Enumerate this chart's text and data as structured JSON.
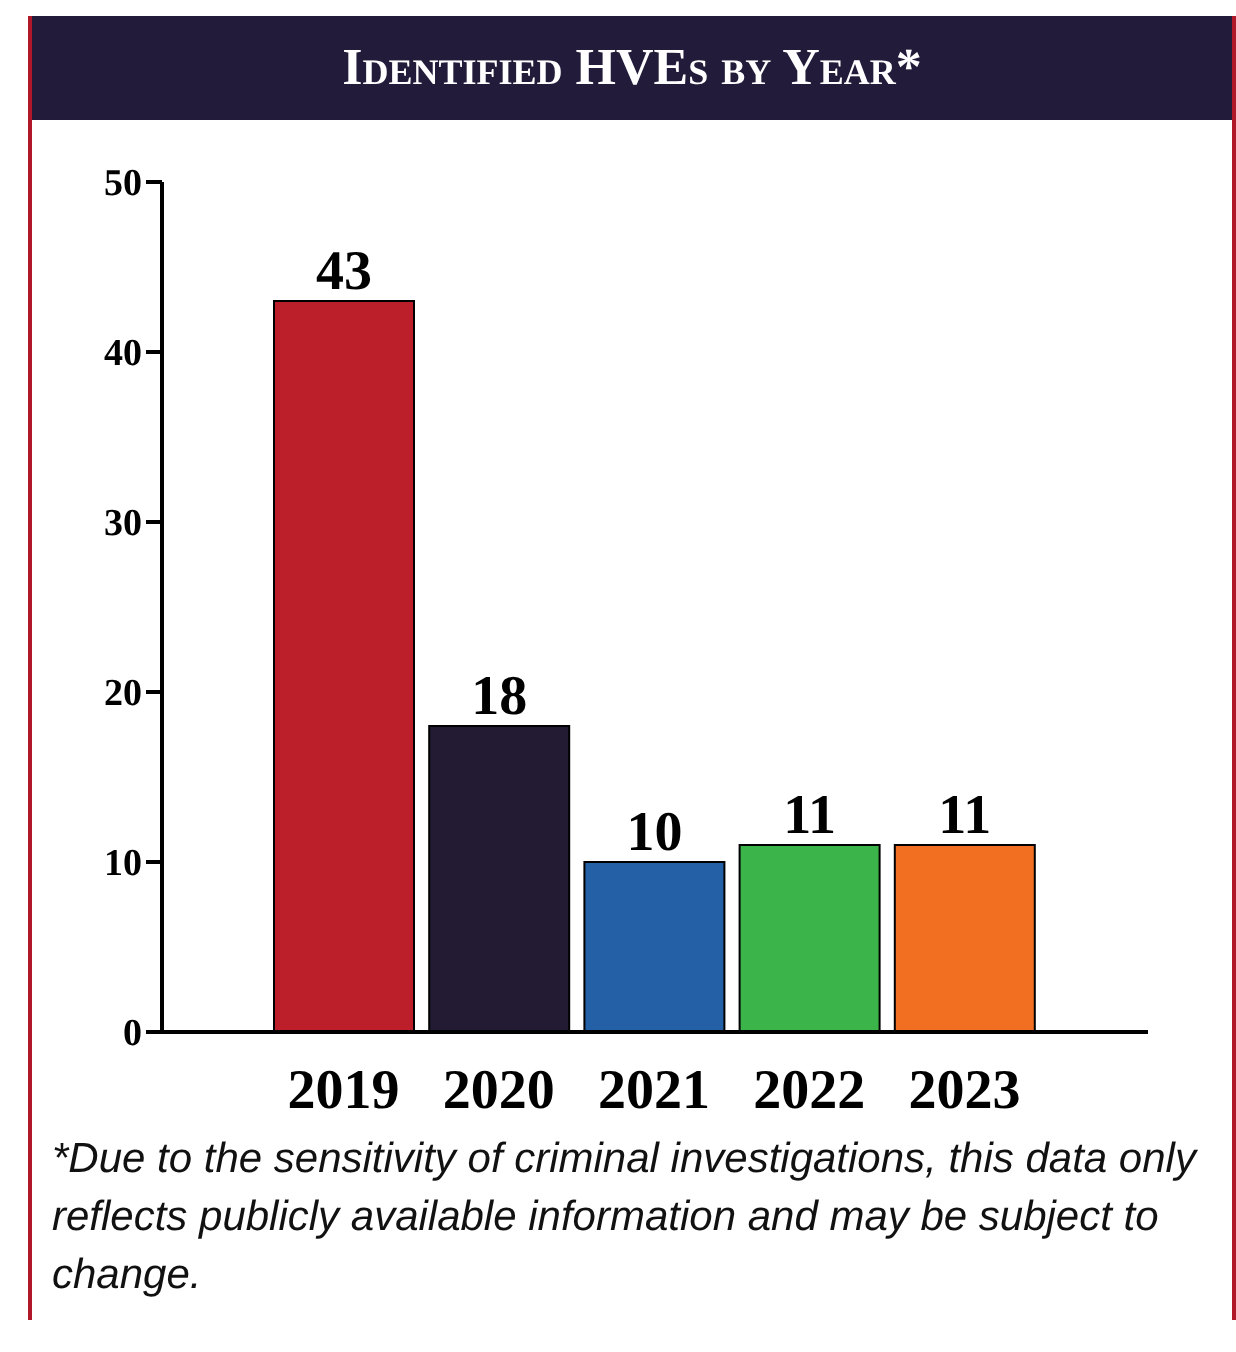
{
  "chart_data": {
    "type": "bar",
    "title": "Identified HVEs by Year*",
    "categories": [
      "2019",
      "2020",
      "2021",
      "2022",
      "2023"
    ],
    "values": [
      43,
      18,
      10,
      11,
      11
    ],
    "colors": [
      "#bd1f2a",
      "#221b33",
      "#2360a5",
      "#3bb54a",
      "#f26f22"
    ],
    "ylim": [
      0,
      50
    ],
    "yticks": [
      0,
      10,
      20,
      30,
      40,
      50
    ],
    "grid": false,
    "data_labels": true,
    "annotations": [
      "*Due to the sensitivity of criminal investigations, this data only reflects publicly available information and may be subject to change."
    ]
  }
}
